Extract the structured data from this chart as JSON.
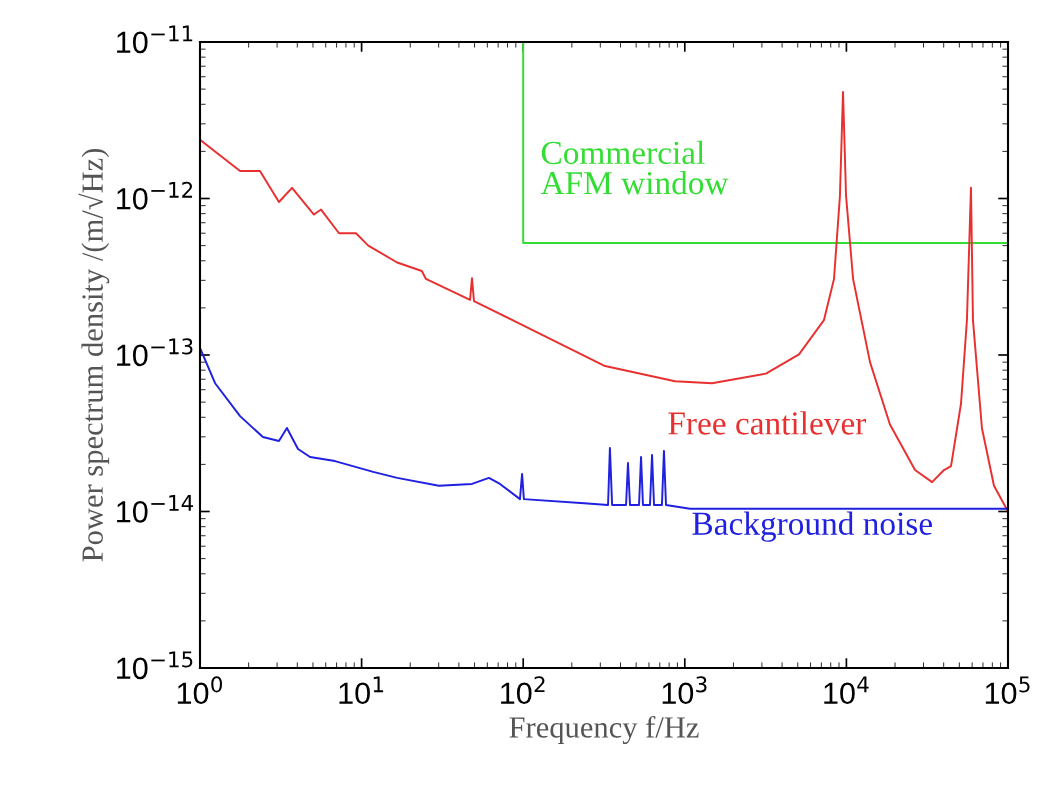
{
  "chart_data": {
    "type": "line",
    "xlabel": "Frequency f/Hz",
    "ylabel": "Power spectrum density /(m/√Hz)",
    "log": "xy",
    "grid": false,
    "legend": false,
    "xlim": [
      1,
      100000
    ],
    "ylim": [
      1e-15,
      1e-11
    ],
    "xticks": [
      {
        "value": 1,
        "label": "10$^{0}$"
      },
      {
        "value": 10,
        "label": "10$^{1}$"
      },
      {
        "value": 100,
        "label": "10$^{2}$"
      },
      {
        "value": 1000,
        "label": "10$^{3}$"
      },
      {
        "value": 10000,
        "label": "10$^{4}$"
      },
      {
        "value": 100000,
        "label": "10$^{5}$"
      }
    ],
    "yticks": [
      {
        "value": 1e-15,
        "label": "10$^{−15}$"
      },
      {
        "value": 1e-14,
        "label": "10$^{−14}$"
      },
      {
        "value": 1e-13,
        "label": "10$^{−13}$"
      },
      {
        "value": 1e-12,
        "label": "10$^{−12}$"
      },
      {
        "value": 1e-11,
        "label": "10$^{−11}$"
      }
    ],
    "series": [
      {
        "name": "Commercial\nAFM window",
        "color": "#33dd33",
        "x": [
          100,
          100,
          100000
        ],
        "values": [
          1e-11,
          5.2e-13,
          5.2e-13
        ]
      },
      {
        "name": "Free cantilever",
        "color": "#e83030",
        "x": [
          1,
          1.77,
          2.35,
          3.08,
          3.71,
          5.07,
          5.61,
          7.25,
          9.23,
          11.0,
          16.6,
          23.6,
          25.0,
          46.9,
          48.2,
          49.6,
          98.4,
          321,
          869,
          1473,
          3177,
          5090,
          7260,
          8380,
          9120,
          9530,
          9950,
          11000,
          14000,
          18600,
          26600,
          33900,
          40200,
          44400,
          51200,
          55700,
          59000,
          60700,
          69000,
          81900,
          100000
        ],
        "values": [
          2.37e-12,
          1.5e-12,
          1.5e-12,
          9.5e-13,
          1.17e-12,
          7.9e-13,
          8.5e-13,
          6e-13,
          6e-13,
          5e-13,
          3.9e-13,
          3.44e-13,
          3.06e-13,
          2.25e-13,
          3.1e-13,
          2.21e-13,
          1.56e-13,
          8.5e-14,
          6.8e-14,
          6.6e-14,
          7.6e-14,
          1.01e-13,
          1.67e-13,
          3.06e-13,
          1.04e-12,
          4.8e-12,
          1.04e-12,
          3.06e-13,
          9e-14,
          3.6e-14,
          1.84e-14,
          1.54e-14,
          1.84e-14,
          1.95e-14,
          4.9e-14,
          1.67e-13,
          1.17e-12,
          1.67e-13,
          3.4e-14,
          1.46e-14,
          1e-14
        ]
      },
      {
        "name": "Background noise",
        "color": "#2020e0",
        "x": [
          1,
          1.24,
          1.77,
          2.45,
          3.08,
          3.45,
          4.04,
          4.8,
          6.84,
          11.8,
          16.6,
          30.1,
          48.2,
          61.4,
          71.8,
          95.5,
          98.4,
          101,
          238,
          335,
          344,
          355,
          433,
          445,
          458,
          521,
          536,
          551,
          609,
          627,
          645,
          722,
          743,
          765,
          1077,
          100000
        ],
        "values": [
          1.11e-13,
          6.6e-14,
          4.07e-14,
          2.99e-14,
          2.82e-14,
          3.42e-14,
          2.51e-14,
          2.23e-14,
          2.1e-14,
          1.79e-14,
          1.64e-14,
          1.46e-14,
          1.5e-14,
          1.64e-14,
          1.5e-14,
          1.2e-14,
          1.74e-14,
          1.2e-14,
          1.13e-14,
          1.1e-14,
          2.55e-14,
          1.1e-14,
          1.1e-14,
          2.04e-14,
          1.1e-14,
          1.1e-14,
          2.23e-14,
          1.1e-14,
          1.1e-14,
          2.3e-14,
          1.1e-14,
          1.1e-14,
          2.44e-14,
          1.1e-14,
          1.04e-14,
          1.04e-14
        ]
      }
    ]
  }
}
